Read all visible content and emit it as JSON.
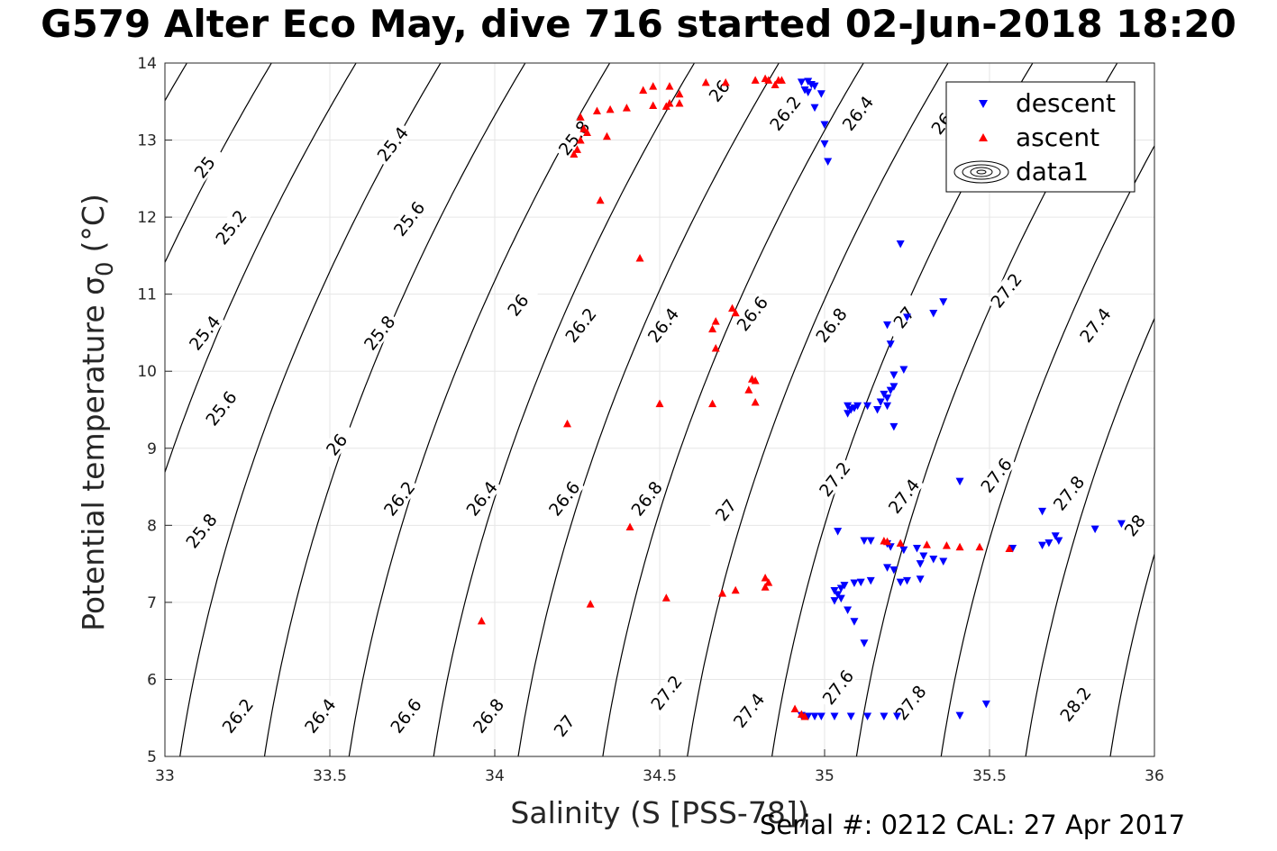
{
  "chart_data": {
    "type": "scatter",
    "title": "G579 Alter Eco May, dive 716 started 02-Jun-2018 18:20",
    "xlabel": "Salinity (S [PSS-78])",
    "ylabel": "Potential temperature σ",
    "ylabel_subscript": "0",
    "ylabel_unit": "(°C)",
    "xlim": [
      33,
      36
    ],
    "ylim": [
      5,
      14
    ],
    "xticks": [
      "33",
      "33.5",
      "34",
      "34.5",
      "35",
      "35.5",
      "36"
    ],
    "yticks": [
      "5",
      "6",
      "7",
      "8",
      "9",
      "10",
      "11",
      "12",
      "13",
      "14"
    ],
    "grid": true,
    "legend_position": "top-right",
    "footer": "Serial #: 0212  CAL: 27 Apr 2017",
    "contours": {
      "color": "#000000",
      "labels": [
        {
          "text": "25",
          "x": 33.12,
          "y": 12.65
        },
        {
          "text": "25.4",
          "x": 33.69,
          "y": 12.95
        },
        {
          "text": "25.2",
          "x": 33.2,
          "y": 11.87
        },
        {
          "text": "25.6",
          "x": 33.74,
          "y": 11.98
        },
        {
          "text": "25.4",
          "x": 33.12,
          "y": 10.5
        },
        {
          "text": "25.8",
          "x": 33.65,
          "y": 10.5
        },
        {
          "text": "25.6",
          "x": 33.17,
          "y": 9.52
        },
        {
          "text": "25.8",
          "x": 33.11,
          "y": 7.93
        },
        {
          "text": "26",
          "x": 33.52,
          "y": 9.05
        },
        {
          "text": "26.2",
          "x": 33.71,
          "y": 8.35
        },
        {
          "text": "26.4",
          "x": 33.96,
          "y": 8.35
        },
        {
          "text": "26.6",
          "x": 34.21,
          "y": 8.35
        },
        {
          "text": "26.8",
          "x": 34.46,
          "y": 8.35
        },
        {
          "text": "27",
          "x": 34.7,
          "y": 8.2
        },
        {
          "text": "27.2",
          "x": 35.03,
          "y": 8.6
        },
        {
          "text": "27.4",
          "x": 35.24,
          "y": 8.38
        },
        {
          "text": "27.6",
          "x": 35.52,
          "y": 8.65
        },
        {
          "text": "27.8",
          "x": 35.74,
          "y": 8.42
        },
        {
          "text": "28",
          "x": 35.94,
          "y": 8.0
        },
        {
          "text": "26",
          "x": 34.07,
          "y": 10.86
        },
        {
          "text": "26.2",
          "x": 34.26,
          "y": 10.6
        },
        {
          "text": "26.4",
          "x": 34.51,
          "y": 10.6
        },
        {
          "text": "26.6",
          "x": 34.78,
          "y": 10.75
        },
        {
          "text": "26.8",
          "x": 35.02,
          "y": 10.6
        },
        {
          "text": "27",
          "x": 35.24,
          "y": 10.7
        },
        {
          "text": "27.2",
          "x": 35.55,
          "y": 11.05
        },
        {
          "text": "27.4",
          "x": 35.82,
          "y": 10.6
        },
        {
          "text": "25.8",
          "x": 34.24,
          "y": 13.03
        },
        {
          "text": "26",
          "x": 34.68,
          "y": 13.64
        },
        {
          "text": "26.2",
          "x": 34.88,
          "y": 13.35
        },
        {
          "text": "26.4",
          "x": 35.1,
          "y": 13.35
        },
        {
          "text": "26.6",
          "x": 35.37,
          "y": 13.3
        },
        {
          "text": "26.2",
          "x": 33.22,
          "y": 5.53
        },
        {
          "text": "26.4",
          "x": 33.47,
          "y": 5.53
        },
        {
          "text": "26.6",
          "x": 33.73,
          "y": 5.53
        },
        {
          "text": "26.8",
          "x": 33.98,
          "y": 5.53
        },
        {
          "text": "27",
          "x": 34.21,
          "y": 5.4
        },
        {
          "text": "27.2",
          "x": 34.52,
          "y": 5.83
        },
        {
          "text": "27.4",
          "x": 34.77,
          "y": 5.6
        },
        {
          "text": "27.6",
          "x": 35.04,
          "y": 5.9
        },
        {
          "text": "27.8",
          "x": 35.26,
          "y": 5.7
        },
        {
          "text": "28.2",
          "x": 35.76,
          "y": 5.68
        }
      ]
    },
    "series": [
      {
        "name": "descent",
        "color": "#0000ff",
        "marker": "triangle-down",
        "points": [
          [
            34.93,
            13.75
          ],
          [
            34.95,
            13.76
          ],
          [
            34.96,
            13.72
          ],
          [
            34.97,
            13.7
          ],
          [
            34.94,
            13.65
          ],
          [
            34.95,
            13.62
          ],
          [
            34.99,
            13.6
          ],
          [
            34.97,
            13.42
          ],
          [
            35.0,
            13.2
          ],
          [
            35.0,
            12.95
          ],
          [
            35.01,
            12.72
          ],
          [
            35.23,
            11.65
          ],
          [
            35.36,
            10.9
          ],
          [
            35.33,
            10.75
          ],
          [
            35.25,
            10.7
          ],
          [
            35.19,
            10.6
          ],
          [
            35.2,
            10.35
          ],
          [
            35.24,
            10.02
          ],
          [
            35.21,
            9.95
          ],
          [
            35.21,
            9.8
          ],
          [
            35.2,
            9.75
          ],
          [
            35.18,
            9.7
          ],
          [
            35.19,
            9.65
          ],
          [
            35.17,
            9.6
          ],
          [
            35.19,
            9.55
          ],
          [
            35.13,
            9.55
          ],
          [
            35.16,
            9.5
          ],
          [
            35.07,
            9.55
          ],
          [
            35.08,
            9.5
          ],
          [
            35.09,
            9.52
          ],
          [
            35.1,
            9.55
          ],
          [
            35.07,
            9.45
          ],
          [
            35.21,
            9.28
          ],
          [
            35.41,
            8.57
          ],
          [
            35.66,
            8.18
          ],
          [
            35.9,
            8.02
          ],
          [
            35.82,
            7.95
          ],
          [
            35.7,
            7.86
          ],
          [
            35.71,
            7.8
          ],
          [
            35.68,
            7.77
          ],
          [
            35.66,
            7.74
          ],
          [
            35.57,
            7.7
          ],
          [
            35.04,
            7.92
          ],
          [
            35.12,
            7.8
          ],
          [
            35.14,
            7.8
          ],
          [
            35.19,
            7.76
          ],
          [
            35.2,
            7.72
          ],
          [
            35.28,
            7.7
          ],
          [
            35.3,
            7.6
          ],
          [
            35.33,
            7.56
          ],
          [
            35.29,
            7.5
          ],
          [
            35.36,
            7.53
          ],
          [
            35.24,
            7.68
          ],
          [
            35.19,
            7.45
          ],
          [
            35.21,
            7.42
          ],
          [
            35.25,
            7.28
          ],
          [
            35.29,
            7.3
          ],
          [
            35.23,
            7.26
          ],
          [
            35.14,
            7.28
          ],
          [
            35.11,
            7.26
          ],
          [
            35.09,
            7.25
          ],
          [
            35.06,
            7.22
          ],
          [
            35.05,
            7.18
          ],
          [
            35.03,
            7.15
          ],
          [
            35.04,
            7.1
          ],
          [
            35.05,
            7.05
          ],
          [
            35.03,
            7.02
          ],
          [
            35.07,
            6.9
          ],
          [
            35.09,
            6.75
          ],
          [
            35.12,
            6.47
          ],
          [
            35.49,
            5.68
          ],
          [
            35.41,
            5.53
          ],
          [
            34.93,
            5.53
          ],
          [
            34.95,
            5.52
          ],
          [
            34.97,
            5.52
          ],
          [
            34.99,
            5.52
          ],
          [
            35.03,
            5.52
          ],
          [
            35.08,
            5.52
          ],
          [
            35.13,
            5.52
          ],
          [
            35.18,
            5.52
          ],
          [
            35.22,
            5.52
          ]
        ]
      },
      {
        "name": "ascent",
        "color": "#ff0000",
        "marker": "triangle-up",
        "points": [
          [
            34.26,
            13.3
          ],
          [
            34.31,
            13.38
          ],
          [
            34.35,
            13.4
          ],
          [
            34.4,
            13.42
          ],
          [
            34.45,
            13.65
          ],
          [
            34.48,
            13.7
          ],
          [
            34.53,
            13.7
          ],
          [
            34.56,
            13.6
          ],
          [
            34.56,
            13.48
          ],
          [
            34.52,
            13.44
          ],
          [
            34.53,
            13.48
          ],
          [
            34.48,
            13.45
          ],
          [
            34.64,
            13.75
          ],
          [
            34.7,
            13.75
          ],
          [
            34.79,
            13.78
          ],
          [
            34.82,
            13.8
          ],
          [
            34.83,
            13.78
          ],
          [
            34.85,
            13.72
          ],
          [
            34.86,
            13.78
          ],
          [
            34.87,
            13.78
          ],
          [
            34.34,
            13.05
          ],
          [
            34.28,
            13.1
          ],
          [
            34.26,
            13.0
          ],
          [
            34.25,
            12.88
          ],
          [
            34.24,
            12.82
          ],
          [
            34.27,
            13.15
          ],
          [
            34.32,
            12.22
          ],
          [
            34.44,
            11.47
          ],
          [
            34.72,
            10.82
          ],
          [
            34.73,
            10.76
          ],
          [
            34.67,
            10.65
          ],
          [
            34.66,
            10.55
          ],
          [
            34.67,
            10.3
          ],
          [
            34.78,
            9.9
          ],
          [
            34.79,
            9.88
          ],
          [
            34.77,
            9.76
          ],
          [
            34.79,
            9.6
          ],
          [
            34.66,
            9.58
          ],
          [
            34.5,
            9.58
          ],
          [
            34.22,
            9.32
          ],
          [
            34.41,
            7.98
          ],
          [
            35.18,
            7.8
          ],
          [
            35.19,
            7.79
          ],
          [
            35.23,
            7.77
          ],
          [
            35.31,
            7.75
          ],
          [
            35.37,
            7.74
          ],
          [
            35.41,
            7.72
          ],
          [
            35.47,
            7.72
          ],
          [
            35.56,
            7.7
          ],
          [
            34.82,
            7.32
          ],
          [
            34.83,
            7.26
          ],
          [
            34.82,
            7.2
          ],
          [
            34.73,
            7.16
          ],
          [
            34.69,
            7.12
          ],
          [
            34.52,
            7.06
          ],
          [
            34.29,
            6.98
          ],
          [
            33.96,
            6.76
          ],
          [
            34.91,
            5.62
          ],
          [
            34.93,
            5.55
          ],
          [
            34.94,
            5.52
          ]
        ]
      },
      {
        "name": "data1",
        "color": "#000000",
        "marker": "contour",
        "points": []
      }
    ]
  }
}
